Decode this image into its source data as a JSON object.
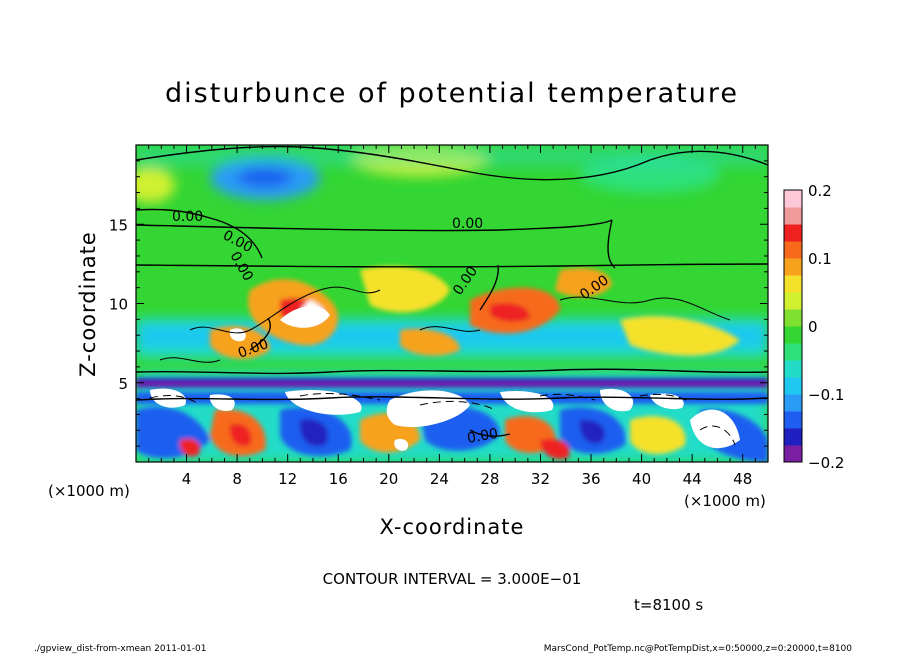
{
  "chart_data": {
    "type": "heatmap",
    "title": "disturbunce of potential temperature",
    "xlabel": "X-coordinate",
    "ylabel": "Z-coordinate",
    "x_unit": "(×1000 m)",
    "y_unit": "(×1000 m)",
    "xlim": [
      0,
      50
    ],
    "ylim": [
      0,
      20
    ],
    "xticks": [
      "4",
      "8",
      "12",
      "16",
      "20",
      "24",
      "28",
      "32",
      "36",
      "40",
      "44",
      "48"
    ],
    "yticks": [
      "5",
      "10",
      "15"
    ],
    "colorbar": {
      "range": [
        -0.2,
        0.2
      ],
      "ticks": [
        "0.2",
        "0.1",
        "0",
        "−0.1",
        "−0.2"
      ],
      "colors": [
        "#7a1fa2",
        "#2020c0",
        "#1e5ef0",
        "#2a9cf5",
        "#1fc8f0",
        "#22dcc8",
        "#2fe07a",
        "#33d633",
        "#7fe030",
        "#d0f030",
        "#f5e12a",
        "#f7a21d",
        "#f76a1c",
        "#ee2020",
        "#f09a9a",
        "#ffc8d8"
      ]
    },
    "contour_labels": [
      "0.00",
      "0.00",
      "0.00",
      "0.00",
      "0.00",
      "0.00",
      "0.00",
      "0.00"
    ],
    "contour_interval": "CONTOUR INTERVAL = 3.000E−01",
    "time_label": "t=8100 s",
    "footer_left": "./gpview_dist-from-xmean  2011-01-01",
    "footer_right": "MarsCond_PotTemp.nc@PotTempDist,x=0:50000,z=0:20000,t=8100"
  }
}
